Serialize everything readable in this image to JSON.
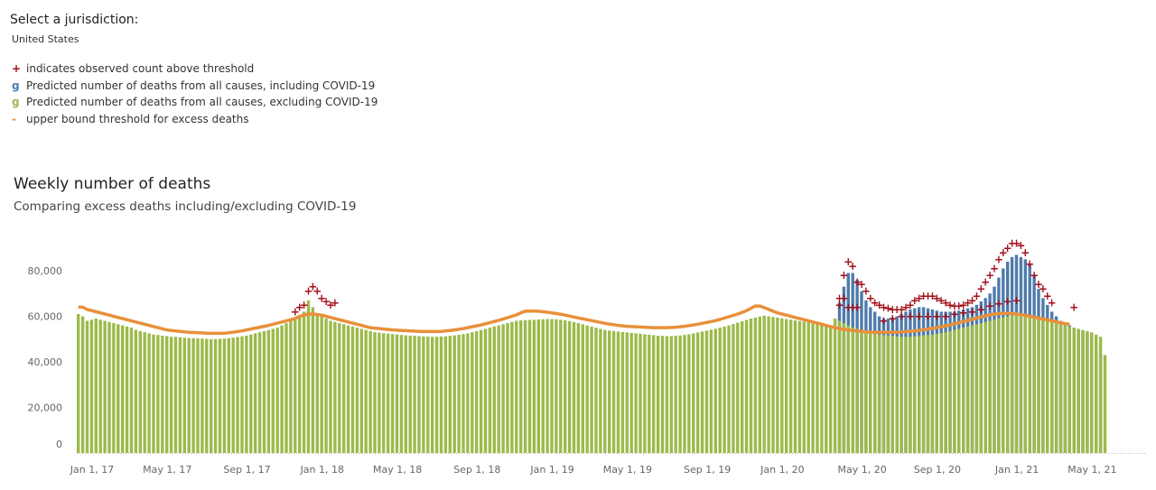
{
  "jurisdiction": {
    "label": "Select a jurisdiction:",
    "value": "United States"
  },
  "legend": [
    {
      "symbol": "+",
      "color": "#a3101a",
      "text": "indicates observed count above threshold",
      "icon": "cross-icon"
    },
    {
      "symbol": "g",
      "color": "#4f7bab",
      "text": "Predicted number of deaths from all causes, including COVID-19",
      "icon": "blue-swatch-icon"
    },
    {
      "symbol": "g",
      "color": "#9cba4a",
      "text": "Predicted number of deaths from all causes, excluding COVID-19",
      "icon": "green-swatch-icon"
    },
    {
      "symbol": "-",
      "color": "#e8903a",
      "text": "upper bound threshold for excess deaths",
      "icon": "line-swatch-icon"
    }
  ],
  "chart": {
    "title": "Weekly number of deaths",
    "subtitle": "Comparing excess deaths including/excluding COVID-19"
  },
  "chart_data": {
    "type": "bar",
    "x_start": "2017-01-01",
    "x_interval": "week",
    "ylim": [
      0,
      90000
    ],
    "y_ticks": [
      {
        "value": 0,
        "label": "0"
      },
      {
        "value": 20000,
        "label": "20,000"
      },
      {
        "value": 40000,
        "label": "40,000"
      },
      {
        "value": 60000,
        "label": "60,000"
      },
      {
        "value": 80000,
        "label": "80,000"
      }
    ],
    "x_ticks": [
      {
        "week": 0,
        "label": "Jan 1, 17"
      },
      {
        "week": 17,
        "label": "May 1, 17"
      },
      {
        "week": 35,
        "label": "Sep 1, 17"
      },
      {
        "week": 52,
        "label": "Jan 1, 18"
      },
      {
        "week": 69,
        "label": "May 1, 18"
      },
      {
        "week": 87,
        "label": "Sep 1, 18"
      },
      {
        "week": 104,
        "label": "Jan 1, 19"
      },
      {
        "week": 121,
        "label": "May 1, 19"
      },
      {
        "week": 139,
        "label": "Sep 1, 19"
      },
      {
        "week": 156,
        "label": "Jan 1, 20"
      },
      {
        "week": 174,
        "label": "May 1, 20"
      },
      {
        "week": 191,
        "label": "Sep 1, 20"
      },
      {
        "week": 209,
        "label": "Jan 1, 21"
      },
      {
        "week": 226,
        "label": "May 1, 21"
      }
    ],
    "series": [
      {
        "name": "Predicted number of deaths from all causes, excluding COVID-19",
        "color": "#9cba4a",
        "values": [
          61000,
          60000,
          58000,
          58500,
          59000,
          58500,
          58000,
          57500,
          57000,
          56500,
          56000,
          55500,
          55000,
          54000,
          53500,
          53000,
          52500,
          52000,
          51800,
          51500,
          51300,
          51000,
          51000,
          50800,
          50600,
          50500,
          50400,
          50300,
          50200,
          50100,
          50000,
          50000,
          50100,
          50200,
          50400,
          50600,
          50900,
          51200,
          51500,
          52000,
          52500,
          53000,
          53500,
          54000,
          54500,
          55000,
          56000,
          57000,
          58000,
          59000,
          60500,
          62000,
          67000,
          64000,
          61000,
          60000,
          59000,
          58000,
          57500,
          57000,
          56500,
          56000,
          55500,
          55000,
          54500,
          54000,
          53500,
          53000,
          52800,
          52600,
          52400,
          52200,
          52000,
          51800,
          51600,
          51500,
          51400,
          51300,
          51200,
          51100,
          51000,
          51000,
          51100,
          51200,
          51400,
          51600,
          51900,
          52200,
          52500,
          53000,
          53500,
          54000,
          54500,
          55000,
          55500,
          56000,
          56500,
          57000,
          57500,
          58000,
          58200,
          58300,
          58400,
          58500,
          58600,
          58700,
          58800,
          58800,
          58700,
          58500,
          58200,
          57900,
          57500,
          57000,
          56500,
          56000,
          55500,
          55000,
          54500,
          54000,
          53700,
          53500,
          53300,
          53100,
          52900,
          52700,
          52500,
          52300,
          52100,
          51900,
          51700,
          51500,
          51400,
          51300,
          51300,
          51400,
          51600,
          51800,
          52100,
          52500,
          52900,
          53300,
          53700,
          54100,
          54500,
          55000,
          55500,
          56000,
          56600,
          57200,
          57800,
          58400,
          59000,
          59500,
          59900,
          60200,
          60000,
          59700,
          59400,
          59100,
          58800,
          58500,
          58200,
          57900,
          57600,
          57300,
          57000,
          56700,
          56400,
          56100,
          55800,
          59000,
          58000,
          57000,
          56000,
          55000,
          54500,
          54000,
          53500,
          53000,
          52500,
          52000,
          51800,
          51600,
          51400,
          51200,
          51000,
          51000,
          51000,
          51200,
          51400,
          51600,
          51800,
          52000,
          52300,
          52600,
          53000,
          53500,
          54000,
          54500,
          55000,
          55500,
          56000,
          56500,
          57000,
          57500,
          58000,
          58500,
          59000,
          59500,
          60000,
          60500,
          61000,
          61000,
          60500,
          60000,
          59500,
          59000,
          58500,
          58000,
          57500,
          57000,
          56500,
          56000,
          55500,
          55000,
          54500,
          54000,
          53500,
          53000,
          52000,
          51000,
          43000
        ]
      },
      {
        "name": "Predicted number of deaths from all causes, including COVID-19",
        "color": "#4f7bab",
        "values": [
          0,
          0,
          0,
          0,
          0,
          0,
          0,
          0,
          0,
          0,
          0,
          0,
          0,
          0,
          0,
          0,
          0,
          0,
          0,
          0,
          0,
          0,
          0,
          0,
          0,
          0,
          0,
          0,
          0,
          0,
          0,
          0,
          0,
          0,
          0,
          0,
          0,
          0,
          0,
          0,
          0,
          0,
          0,
          0,
          0,
          0,
          0,
          0,
          0,
          0,
          0,
          0,
          0,
          0,
          0,
          0,
          0,
          0,
          0,
          0,
          0,
          0,
          0,
          0,
          0,
          0,
          0,
          0,
          0,
          0,
          0,
          0,
          0,
          0,
          0,
          0,
          0,
          0,
          0,
          0,
          0,
          0,
          0,
          0,
          0,
          0,
          0,
          0,
          0,
          0,
          0,
          0,
          0,
          0,
          0,
          0,
          0,
          0,
          0,
          0,
          0,
          0,
          0,
          0,
          0,
          0,
          0,
          0,
          0,
          0,
          0,
          0,
          0,
          0,
          0,
          0,
          0,
          0,
          0,
          0,
          0,
          0,
          0,
          0,
          0,
          0,
          0,
          0,
          0,
          0,
          0,
          0,
          0,
          0,
          0,
          0,
          0,
          0,
          0,
          0,
          0,
          0,
          0,
          0,
          0,
          0,
          0,
          0,
          0,
          0,
          0,
          0,
          0,
          0,
          0,
          0,
          0,
          0,
          0,
          0,
          0,
          0,
          0,
          0,
          0,
          0,
          0,
          0,
          0,
          0,
          0,
          0,
          66000,
          73000,
          79000,
          79000,
          76000,
          71000,
          67000,
          64000,
          62000,
          60000,
          59000,
          59000,
          59500,
          60000,
          61000,
          62000,
          63000,
          63500,
          64000,
          64000,
          63500,
          63000,
          62500,
          62000,
          62000,
          62000,
          62000,
          62500,
          63000,
          63500,
          64000,
          65000,
          66500,
          68000,
          70000,
          73000,
          77000,
          81000,
          84000,
          86000,
          87000,
          86000,
          85000,
          83000,
          78000,
          72000,
          68000,
          65000,
          62000,
          60000,
          58000,
          57000,
          56000,
          55000,
          54000,
          53000,
          52500,
          52000,
          46000,
          43000
        ]
      },
      {
        "name": "upper bound threshold for excess deaths",
        "color": "#e8903a",
        "kind": "line",
        "values": [
          64000,
          64000,
          63000,
          62500,
          62000,
          61500,
          61000,
          60500,
          60000,
          59500,
          59000,
          58500,
          58000,
          57500,
          57000,
          56500,
          56000,
          55500,
          55000,
          54500,
          54000,
          53800,
          53600,
          53400,
          53200,
          53000,
          52900,
          52800,
          52700,
          52600,
          52500,
          52500,
          52500,
          52600,
          52800,
          53000,
          53300,
          53600,
          54000,
          54400,
          54800,
          55200,
          55600,
          56000,
          56500,
          57000,
          57500,
          58000,
          58500,
          59000,
          60000,
          60500,
          61000,
          61000,
          60800,
          60500,
          60000,
          59500,
          59000,
          58500,
          58000,
          57500,
          57000,
          56500,
          56000,
          55500,
          55000,
          54800,
          54600,
          54400,
          54200,
          54000,
          53900,
          53800,
          53700,
          53600,
          53500,
          53400,
          53300,
          53300,
          53300,
          53300,
          53400,
          53600,
          53800,
          54000,
          54300,
          54600,
          55000,
          55400,
          55800,
          56200,
          56700,
          57200,
          57700,
          58200,
          58800,
          59400,
          60000,
          60600,
          61500,
          62200,
          62300,
          62300,
          62200,
          62000,
          61800,
          61500,
          61200,
          60900,
          60500,
          60100,
          59700,
          59300,
          58900,
          58500,
          58100,
          57700,
          57300,
          56900,
          56600,
          56300,
          56000,
          55800,
          55600,
          55500,
          55400,
          55300,
          55200,
          55100,
          55000,
          55000,
          55000,
          55000,
          55100,
          55200,
          55400,
          55600,
          55900,
          56200,
          56500,
          56900,
          57300,
          57700,
          58100,
          58600,
          59200,
          59800,
          60400,
          61000,
          61700,
          62500,
          63500,
          64500,
          64500,
          63800,
          63000,
          62200,
          61500,
          61000,
          60500,
          60000,
          59500,
          59000,
          58500,
          58000,
          57500,
          57000,
          56500,
          56000,
          55500,
          55000,
          54500,
          54200,
          54000,
          53800,
          53600,
          53400,
          53200,
          53000,
          53000,
          53000,
          53000,
          53000,
          53000,
          53000,
          53100,
          53200,
          53400,
          53600,
          53800,
          54100,
          54400,
          54700,
          55000,
          55400,
          55800,
          56200,
          56700,
          57200,
          57700,
          58200,
          58700,
          59200,
          59700,
          60200,
          60600,
          61000,
          61200,
          61300,
          61300,
          61200,
          61000,
          60700,
          60400,
          60000,
          59600,
          59200,
          58800,
          58400,
          58000,
          57600,
          57200,
          56800,
          56500
        ]
      },
      {
        "name": "indicates observed count above threshold",
        "color": "#a3101a",
        "kind": "marker",
        "points": [
          [
            49,
            62000
          ],
          [
            50,
            64000
          ],
          [
            51,
            65000
          ],
          [
            52,
            71000
          ],
          [
            53,
            73000
          ],
          [
            54,
            71000
          ],
          [
            55,
            68000
          ],
          [
            56,
            66500
          ],
          [
            57,
            65000
          ],
          [
            58,
            66000
          ],
          [
            172,
            65000
          ],
          [
            172,
            68000
          ],
          [
            173,
            68000
          ],
          [
            173,
            78000
          ],
          [
            174,
            84000
          ],
          [
            175,
            82000
          ],
          [
            176,
            75000
          ],
          [
            177,
            74000
          ],
          [
            178,
            71000
          ],
          [
            179,
            68000
          ],
          [
            174,
            64000
          ],
          [
            175,
            64000
          ],
          [
            176,
            64000
          ],
          [
            180,
            66000
          ],
          [
            181,
            65000
          ],
          [
            182,
            64000
          ],
          [
            183,
            63500
          ],
          [
            184,
            63000
          ],
          [
            185,
            63000
          ],
          [
            186,
            63000
          ],
          [
            187,
            64000
          ],
          [
            188,
            65000
          ],
          [
            189,
            67000
          ],
          [
            190,
            68000
          ],
          [
            191,
            69000
          ],
          [
            192,
            69000
          ],
          [
            193,
            69000
          ],
          [
            194,
            68000
          ],
          [
            195,
            67000
          ],
          [
            196,
            66000
          ],
          [
            197,
            65000
          ],
          [
            198,
            64500
          ],
          [
            199,
            64500
          ],
          [
            200,
            65000
          ],
          [
            201,
            66000
          ],
          [
            202,
            67000
          ],
          [
            203,
            69000
          ],
          [
            204,
            72000
          ],
          [
            205,
            75000
          ],
          [
            206,
            78000
          ],
          [
            207,
            81000
          ],
          [
            208,
            85000
          ],
          [
            209,
            88000
          ],
          [
            210,
            90000
          ],
          [
            211,
            92000
          ],
          [
            212,
            92000
          ],
          [
            213,
            91000
          ],
          [
            214,
            88000
          ],
          [
            215,
            83000
          ],
          [
            216,
            78000
          ],
          [
            217,
            74000
          ],
          [
            218,
            72000
          ],
          [
            219,
            69000
          ],
          [
            220,
            66000
          ],
          [
            225,
            64000
          ],
          [
            182,
            58000
          ],
          [
            184,
            59000
          ],
          [
            186,
            60000
          ],
          [
            188,
            60000
          ],
          [
            190,
            60000
          ],
          [
            192,
            60000
          ],
          [
            194,
            60000
          ],
          [
            196,
            60000
          ],
          [
            198,
            61000
          ],
          [
            200,
            61500
          ],
          [
            202,
            62000
          ],
          [
            204,
            63000
          ],
          [
            206,
            64500
          ],
          [
            208,
            65500
          ],
          [
            210,
            66500
          ],
          [
            212,
            67000
          ]
        ]
      }
    ]
  }
}
